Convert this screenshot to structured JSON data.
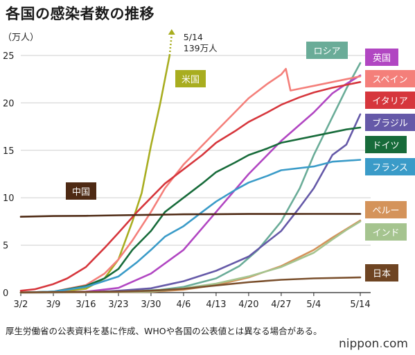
{
  "title": "各国の感染者数の推移",
  "note": "厚生労働省の公表資料を基に作成、WHOや各国の公表値とは異なる場合がある。",
  "brand": {
    "name": "nippon",
    "sep": ".",
    "tld": "com"
  },
  "chart_data": {
    "type": "line",
    "title": "各国の感染者数の推移",
    "ylabel": "（万人）",
    "ylim": [
      0,
      25
    ],
    "yticks": [
      0,
      5,
      10,
      15,
      20,
      25
    ],
    "xlim": [
      "3/2",
      "5/14"
    ],
    "xticks": [
      "3/2",
      "3/9",
      "3/16",
      "3/23",
      "3/30",
      "4/6",
      "4/13",
      "4/20",
      "4/27",
      "5/4",
      "5/14"
    ],
    "grid": "horizontal",
    "annotation": {
      "lines": [
        "5/14",
        "139万人"
      ],
      "series": "米国"
    },
    "series": [
      {
        "name": "米国",
        "color": "#a8ad1f",
        "label_color": "#a8ad1f",
        "points": [
          [
            "3/2",
            0.01
          ],
          [
            "3/9",
            0.05
          ],
          [
            "3/16",
            0.4
          ],
          [
            "3/20",
            1.5
          ],
          [
            "3/23",
            3.5
          ],
          [
            "3/26",
            7.5
          ],
          [
            "3/28",
            10.5
          ],
          [
            "3/30",
            15.5
          ],
          [
            "4/1",
            20
          ],
          [
            "4/3",
            25
          ]
        ]
      },
      {
        "name": "ロシア",
        "color": "#6aac98",
        "label_color": "#6aac98",
        "points": [
          [
            "3/2",
            0
          ],
          [
            "3/23",
            0.05
          ],
          [
            "4/1",
            0.3
          ],
          [
            "4/6",
            0.6
          ],
          [
            "4/13",
            1.5
          ],
          [
            "4/18",
            2.8
          ],
          [
            "4/22",
            4.5
          ],
          [
            "4/27",
            7.5
          ],
          [
            "5/1",
            11
          ],
          [
            "5/4",
            14.5
          ],
          [
            "5/8",
            18.5
          ],
          [
            "5/11",
            21.5
          ],
          [
            "5/14",
            24.2
          ]
        ]
      },
      {
        "name": "英国",
        "color": "#b146c2",
        "label_color": "#b146c2",
        "points": [
          [
            "3/2",
            0
          ],
          [
            "3/16",
            0.1
          ],
          [
            "3/23",
            0.5
          ],
          [
            "3/30",
            2.0
          ],
          [
            "4/6",
            4.5
          ],
          [
            "4/13",
            8.5
          ],
          [
            "4/20",
            12.5
          ],
          [
            "4/27",
            16.0
          ],
          [
            "5/4",
            19.0
          ],
          [
            "5/8",
            21.0
          ],
          [
            "5/11",
            22.0
          ],
          [
            "5/14",
            22.9
          ]
        ]
      },
      {
        "name": "スペイン",
        "color": "#f47f7a",
        "label_color": "#f47f7a",
        "points": [
          [
            "3/2",
            0.01
          ],
          [
            "3/9",
            0.1
          ],
          [
            "3/16",
            0.8
          ],
          [
            "3/20",
            2.0
          ],
          [
            "3/23",
            3.5
          ],
          [
            "3/26",
            5.5
          ],
          [
            "3/30",
            8.5
          ],
          [
            "4/2",
            11.0
          ],
          [
            "4/6",
            13.5
          ],
          [
            "4/10",
            15.5
          ],
          [
            "4/13",
            17.0
          ],
          [
            "4/17",
            19.0
          ],
          [
            "4/20",
            20.5
          ],
          [
            "4/24",
            22.0
          ],
          [
            "4/27",
            23.0
          ],
          [
            "4/28",
            23.6
          ],
          [
            "4/29",
            21.3
          ],
          [
            "5/1",
            21.5
          ],
          [
            "5/4",
            21.8
          ],
          [
            "5/8",
            22.2
          ],
          [
            "5/11",
            22.5
          ],
          [
            "5/14",
            22.8
          ]
        ]
      },
      {
        "name": "イタリア",
        "color": "#d6363c",
        "label_color": "#d6363c",
        "points": [
          [
            "3/2",
            0.2
          ],
          [
            "3/5",
            0.35
          ],
          [
            "3/9",
            0.9
          ],
          [
            "3/12",
            1.5
          ],
          [
            "3/16",
            2.7
          ],
          [
            "3/20",
            4.7
          ],
          [
            "3/23",
            6.3
          ],
          [
            "3/27",
            8.5
          ],
          [
            "3/30",
            10.0
          ],
          [
            "4/2",
            11.5
          ],
          [
            "4/6",
            13.0
          ],
          [
            "4/10",
            14.5
          ],
          [
            "4/13",
            15.8
          ],
          [
            "4/17",
            17.0
          ],
          [
            "4/20",
            18.0
          ],
          [
            "4/24",
            19.0
          ],
          [
            "4/27",
            19.8
          ],
          [
            "5/1",
            20.6
          ],
          [
            "5/4",
            21.1
          ],
          [
            "5/8",
            21.6
          ],
          [
            "5/11",
            21.9
          ],
          [
            "5/14",
            22.2
          ]
        ]
      },
      {
        "name": "ブラジル",
        "color": "#6559a8",
        "label_color": "#6559a8",
        "points": [
          [
            "3/2",
            0
          ],
          [
            "3/16",
            0.02
          ],
          [
            "3/23",
            0.2
          ],
          [
            "3/30",
            0.45
          ],
          [
            "4/6",
            1.2
          ],
          [
            "4/13",
            2.3
          ],
          [
            "4/20",
            3.8
          ],
          [
            "4/27",
            6.5
          ],
          [
            "5/1",
            9.0
          ],
          [
            "5/4",
            11.0
          ],
          [
            "5/8",
            14.5
          ],
          [
            "5/11",
            15.6
          ],
          [
            "5/14",
            18.8
          ]
        ]
      },
      {
        "name": "ドイツ",
        "color": "#176b3a",
        "label_color": "#176b3a",
        "points": [
          [
            "3/2",
            0
          ],
          [
            "3/9",
            0.1
          ],
          [
            "3/16",
            0.7
          ],
          [
            "3/20",
            1.5
          ],
          [
            "3/23",
            2.5
          ],
          [
            "3/26",
            4.5
          ],
          [
            "3/30",
            6.5
          ],
          [
            "4/2",
            8.5
          ],
          [
            "4/6",
            10.0
          ],
          [
            "4/10",
            11.5
          ],
          [
            "4/13",
            12.7
          ],
          [
            "4/17",
            13.7
          ],
          [
            "4/20",
            14.5
          ],
          [
            "4/24",
            15.2
          ],
          [
            "4/27",
            15.8
          ],
          [
            "5/4",
            16.5
          ],
          [
            "5/8",
            16.9
          ],
          [
            "5/11",
            17.2
          ],
          [
            "5/14",
            17.4
          ]
        ]
      },
      {
        "name": "フランス",
        "color": "#3a9bc8",
        "label_color": "#3a9bc8",
        "points": [
          [
            "3/2",
            0.01
          ],
          [
            "3/9",
            0.1
          ],
          [
            "3/16",
            0.6
          ],
          [
            "3/23",
            1.7
          ],
          [
            "3/27",
            3.2
          ],
          [
            "3/30",
            4.5
          ],
          [
            "4/2",
            5.9
          ],
          [
            "4/6",
            7.0
          ],
          [
            "4/10",
            8.5
          ],
          [
            "4/13",
            9.6
          ],
          [
            "4/17",
            10.8
          ],
          [
            "4/20",
            11.6
          ],
          [
            "4/24",
            12.3
          ],
          [
            "4/27",
            12.9
          ],
          [
            "5/4",
            13.3
          ],
          [
            "5/8",
            13.8
          ],
          [
            "5/11",
            13.9
          ],
          [
            "5/14",
            14.0
          ]
        ]
      },
      {
        "name": "中国",
        "color": "#4e2a14",
        "label_color": "#4e2a14",
        "points": [
          [
            "3/2",
            8.0
          ],
          [
            "3/9",
            8.07
          ],
          [
            "3/16",
            8.09
          ],
          [
            "3/23",
            8.15
          ],
          [
            "3/30",
            8.2
          ],
          [
            "4/6",
            8.25
          ],
          [
            "4/13",
            8.27
          ],
          [
            "4/20",
            8.29
          ],
          [
            "4/27",
            8.29
          ],
          [
            "5/4",
            8.3
          ],
          [
            "5/14",
            8.3
          ]
        ]
      },
      {
        "name": "ペルー",
        "color": "#d4935a",
        "label_color": "#d4935a",
        "points": [
          [
            "3/2",
            0
          ],
          [
            "3/30",
            0.08
          ],
          [
            "4/6",
            0.3
          ],
          [
            "4/13",
            0.8
          ],
          [
            "4/20",
            1.6
          ],
          [
            "4/27",
            2.8
          ],
          [
            "5/4",
            4.5
          ],
          [
            "5/8",
            5.8
          ],
          [
            "5/11",
            6.7
          ],
          [
            "5/14",
            7.6
          ]
        ]
      },
      {
        "name": "インド",
        "color": "#a5c48f",
        "label_color": "#a5c48f",
        "points": [
          [
            "3/2",
            0
          ],
          [
            "3/30",
            0.12
          ],
          [
            "4/6",
            0.45
          ],
          [
            "4/13",
            0.95
          ],
          [
            "4/20",
            1.7
          ],
          [
            "4/27",
            2.7
          ],
          [
            "5/4",
            4.2
          ],
          [
            "5/8",
            5.6
          ],
          [
            "5/11",
            6.6
          ],
          [
            "5/14",
            7.5
          ]
        ]
      },
      {
        "name": "日本",
        "color": "#7a4f2c",
        "label_color": "#6e4422",
        "points": [
          [
            "3/2",
            0.02
          ],
          [
            "3/9",
            0.05
          ],
          [
            "3/16",
            0.08
          ],
          [
            "3/23",
            0.1
          ],
          [
            "3/30",
            0.2
          ],
          [
            "4/6",
            0.4
          ],
          [
            "4/13",
            0.75
          ],
          [
            "4/20",
            1.1
          ],
          [
            "4/27",
            1.35
          ],
          [
            "5/4",
            1.5
          ],
          [
            "5/14",
            1.6
          ]
        ]
      }
    ]
  }
}
